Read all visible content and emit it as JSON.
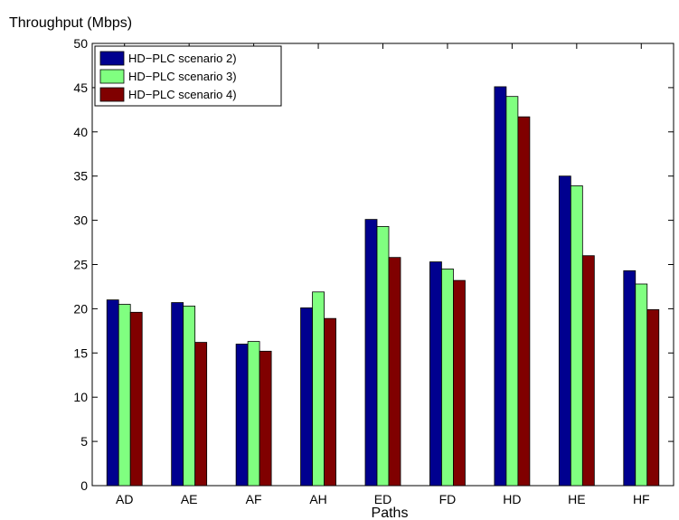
{
  "chart_data": {
    "type": "bar",
    "title": "",
    "ylabel": "Throughput (Mbps)",
    "xlabel": "Paths",
    "ylim": [
      0,
      50
    ],
    "yticks": [
      0,
      5,
      10,
      15,
      20,
      25,
      30,
      35,
      40,
      45,
      50
    ],
    "grid": false,
    "legend_position": "top-left",
    "categories": [
      "AD",
      "AE",
      "AF",
      "AH",
      "ED",
      "FD",
      "HD",
      "HE",
      "HF"
    ],
    "series": [
      {
        "name": "HD−PLC scenario 2)",
        "color": "#00008f",
        "values": [
          21.0,
          20.7,
          16.0,
          20.1,
          30.1,
          25.3,
          45.1,
          35.0,
          24.3
        ]
      },
      {
        "name": "HD−PLC scenario 3)",
        "color": "#80ff80",
        "values": [
          20.5,
          20.3,
          16.3,
          21.9,
          29.3,
          24.5,
          44.0,
          33.9,
          22.8
        ]
      },
      {
        "name": "HD−PLC scenario 4)",
        "color": "#800000",
        "values": [
          19.6,
          16.2,
          15.2,
          18.9,
          25.8,
          23.2,
          41.7,
          26.0,
          19.9
        ]
      }
    ]
  }
}
